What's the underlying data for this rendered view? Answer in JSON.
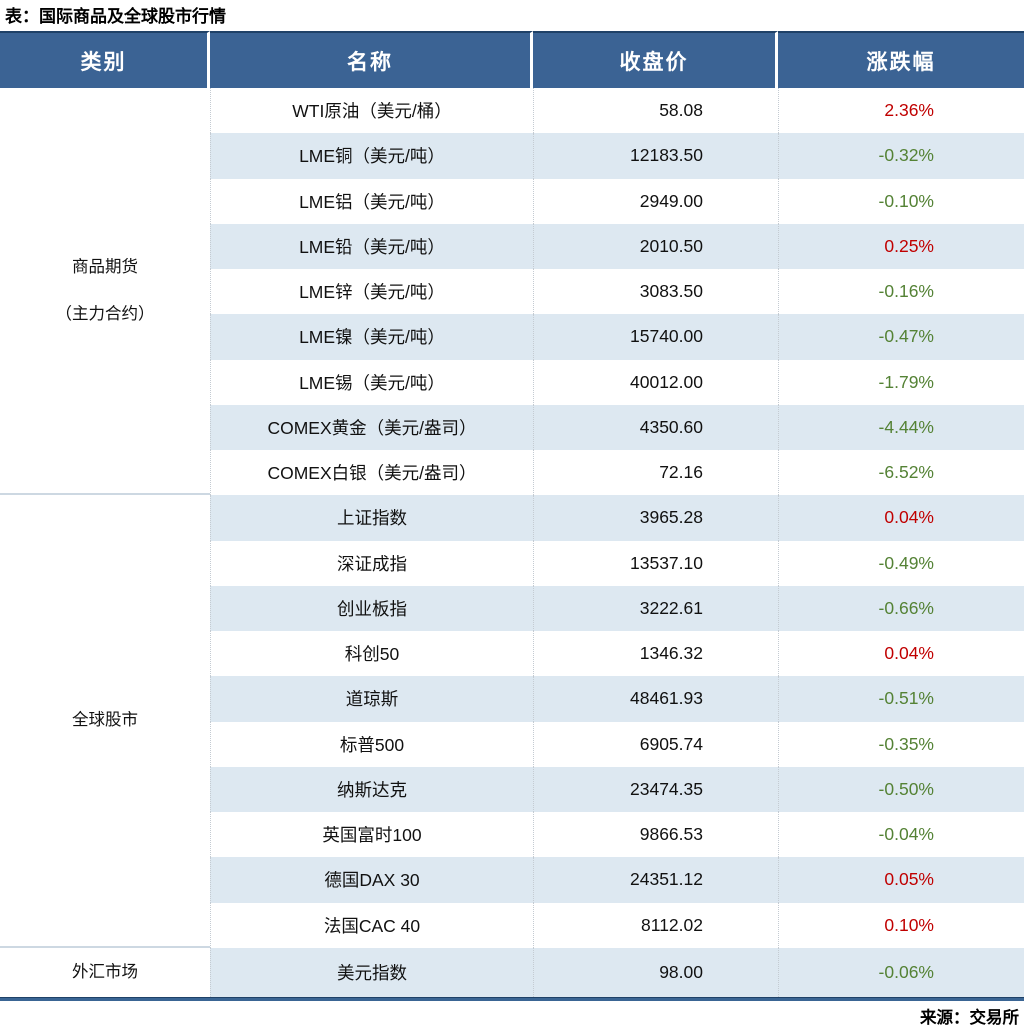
{
  "chart_data": {
    "type": "table",
    "title": "表：国际商品及全球股市行情",
    "source": "来源：交易所",
    "columns": [
      "类别",
      "名称",
      "收盘价",
      "涨跌幅"
    ],
    "groups": [
      {
        "category": "商品期货（主力合约）",
        "category_lines": [
          "商品期货",
          "（主力合约）"
        ],
        "rows": [
          {
            "name": "WTI原油（美元/桶）",
            "close": "58.08",
            "change": "2.36%",
            "direction": "up"
          },
          {
            "name": "LME铜（美元/吨）",
            "close": "12183.50",
            "change": "-0.32%",
            "direction": "down"
          },
          {
            "name": "LME铝（美元/吨）",
            "close": "2949.00",
            "change": "-0.10%",
            "direction": "down"
          },
          {
            "name": "LME铅（美元/吨）",
            "close": "2010.50",
            "change": "0.25%",
            "direction": "up"
          },
          {
            "name": "LME锌（美元/吨）",
            "close": "3083.50",
            "change": "-0.16%",
            "direction": "down"
          },
          {
            "name": "LME镍（美元/吨）",
            "close": "15740.00",
            "change": "-0.47%",
            "direction": "down"
          },
          {
            "name": "LME锡（美元/吨）",
            "close": "40012.00",
            "change": "-1.79%",
            "direction": "down"
          },
          {
            "name": "COMEX黄金（美元/盎司）",
            "close": "4350.60",
            "change": "-4.44%",
            "direction": "down"
          },
          {
            "name": "COMEX白银（美元/盎司）",
            "close": "72.16",
            "change": "-6.52%",
            "direction": "down"
          }
        ]
      },
      {
        "category": "全球股市",
        "category_lines": [
          "全球股市"
        ],
        "rows": [
          {
            "name": "上证指数",
            "close": "3965.28",
            "change": "0.04%",
            "direction": "up"
          },
          {
            "name": "深证成指",
            "close": "13537.10",
            "change": "-0.49%",
            "direction": "down"
          },
          {
            "name": "创业板指",
            "close": "3222.61",
            "change": "-0.66%",
            "direction": "down"
          },
          {
            "name": "科创50",
            "close": "1346.32",
            "change": "0.04%",
            "direction": "up"
          },
          {
            "name": "道琼斯",
            "close": "48461.93",
            "change": "-0.51%",
            "direction": "down"
          },
          {
            "name": "标普500",
            "close": "6905.74",
            "change": "-0.35%",
            "direction": "down"
          },
          {
            "name": "纳斯达克",
            "close": "23474.35",
            "change": "-0.50%",
            "direction": "down"
          },
          {
            "name": "英国富时100",
            "close": "9866.53",
            "change": "-0.04%",
            "direction": "down"
          },
          {
            "name": "德国DAX 30",
            "close": "24351.12",
            "change": "0.05%",
            "direction": "up"
          },
          {
            "name": "法国CAC 40",
            "close": "8112.02",
            "change": "0.10%",
            "direction": "up"
          }
        ]
      },
      {
        "category": "外汇市场",
        "category_lines": [
          "外汇市场"
        ],
        "rows": [
          {
            "name": "美元指数",
            "close": "98.00",
            "change": "-0.06%",
            "direction": "down"
          }
        ]
      }
    ]
  },
  "colors": {
    "header_bg": "#3B6394",
    "header_top_border": "#1F4167",
    "stripe": "#DDE8F1",
    "up_red": "#C00000",
    "down_green": "#548235",
    "category_separator": "#CDD8E2",
    "column_divider_dotted": "#C4CBD2",
    "bottom_bar": "#3A6594"
  }
}
